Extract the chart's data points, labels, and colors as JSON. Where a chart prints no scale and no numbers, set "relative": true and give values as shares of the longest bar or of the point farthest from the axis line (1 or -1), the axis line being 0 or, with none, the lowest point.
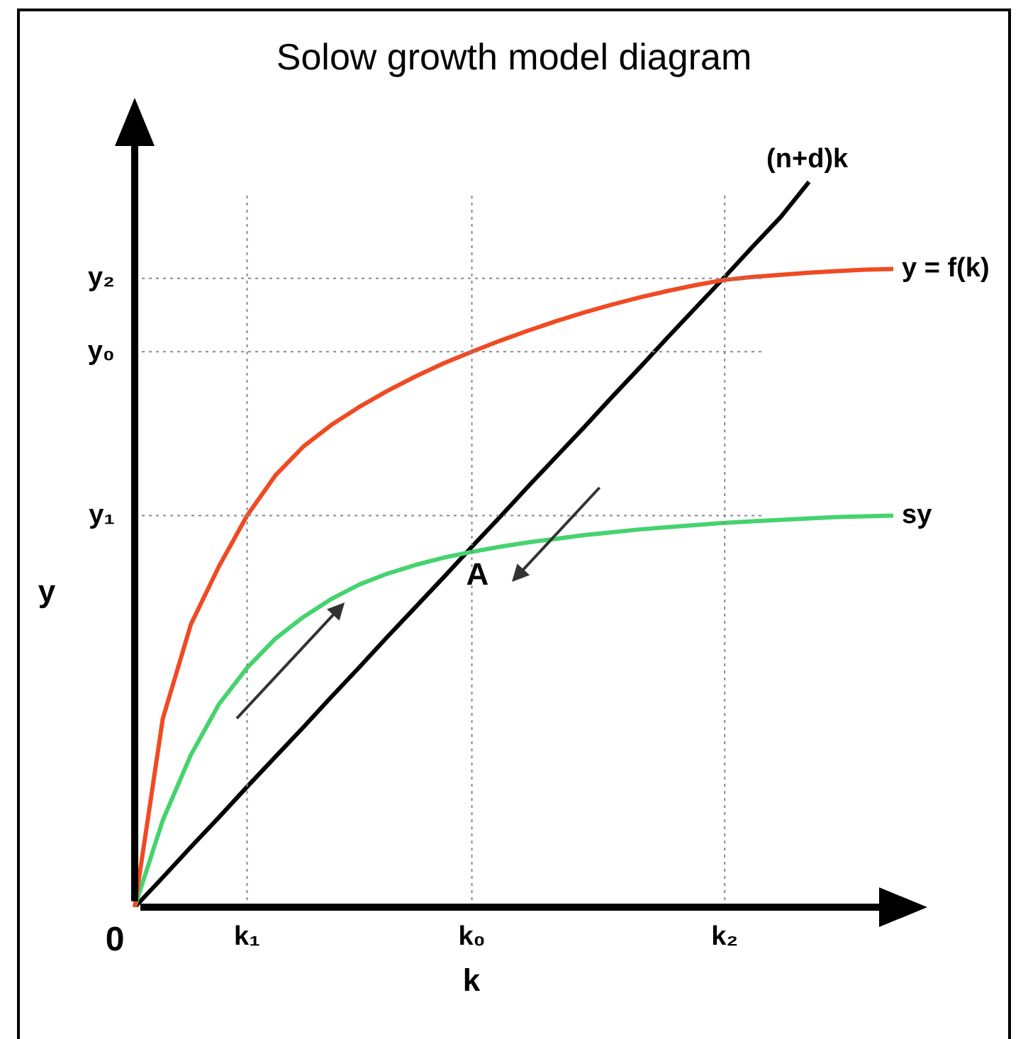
{
  "chart_data": {
    "type": "line",
    "title": "Solow growth model diagram",
    "xlabel": "k",
    "ylabel": "y",
    "relative": true,
    "grid": "x",
    "legend": false,
    "marker": "none",
    "line_style": "solid",
    "categories": [
      "0",
      null,
      null,
      null,
      "k₁",
      null,
      null,
      null,
      null,
      null,
      null,
      null,
      "k₀",
      null,
      null,
      null,
      null,
      null,
      null,
      null,
      null,
      "k₂",
      null,
      null,
      null,
      null,
      null,
      null
    ],
    "series": [
      {
        "name": "y = f(k)",
        "color": "#f04a23",
        "values": [
          0,
          0.26,
          0.39,
          0.47,
          0.54,
          0.595,
          0.635,
          0.665,
          0.69,
          0.712,
          0.732,
          0.75,
          0.766,
          0.781,
          0.795,
          0.808,
          0.82,
          0.831,
          0.841,
          0.85,
          0.858,
          0.865,
          0.869,
          0.872,
          0.875,
          0.877,
          0.879,
          0.88
        ]
      },
      {
        "name": "sy",
        "color": "#45d36e",
        "values": [
          0,
          0.12,
          0.21,
          0.28,
          0.33,
          0.37,
          0.4,
          0.425,
          0.445,
          0.46,
          0.472,
          0.482,
          0.49,
          0.497,
          0.503,
          0.508,
          0.513,
          0.517,
          0.521,
          0.524,
          0.527,
          0.53,
          0.532,
          0.534,
          0.536,
          0.538,
          0.539,
          0.54
        ]
      },
      {
        "name": "(n+d)k",
        "color": "#000000",
        "values": [
          0,
          0.041,
          0.083,
          0.124,
          0.166,
          0.207,
          0.248,
          0.29,
          0.331,
          0.373,
          0.414,
          0.455,
          0.497,
          0.538,
          0.58,
          0.621,
          0.662,
          0.704,
          0.745,
          0.787,
          0.828,
          0.869,
          0.911,
          0.952,
          1,
          null,
          null,
          null
        ]
      }
    ],
    "ref_lines": [
      {
        "axis": "y",
        "value": 0.867,
        "label": "y₂",
        "color": "#888888",
        "line_style": "dotted"
      },
      {
        "axis": "y",
        "value": 0.766,
        "label": "y₀",
        "color": "#888888",
        "line_style": "dotted"
      },
      {
        "axis": "y",
        "value": 0.54,
        "label": "y₁",
        "color": "#888888",
        "line_style": "dotted"
      }
    ],
    "annotations": [
      {
        "text": "A",
        "x": "k₀",
        "y": 0.49
      }
    ]
  }
}
